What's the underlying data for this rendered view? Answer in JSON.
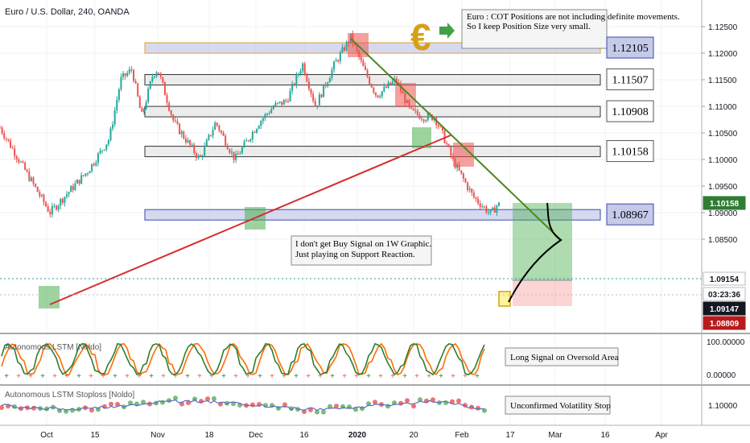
{
  "header": {
    "symbol_title": "Euro / U.S. Dollar, 240, OANDA"
  },
  "colors": {
    "up": "#26a69a",
    "down": "#ef5350",
    "trend_red": "#d32f2f",
    "trend_green": "#4a8a1f",
    "accent_blue": "#2962ff",
    "target_box": "#4caf50",
    "stop_box": "#ef5350",
    "gold": "#d4a017"
  },
  "annotations": {
    "euro_note": "Euro : COT Positions are not including definite movements.\nSo I keep Position Size very small.",
    "buy_note": "I don't get Buy Signal on 1W Graphic.\nJust playing on Support Reaction.",
    "long_signal_note": "Long Signal on Oversold Area",
    "vol_stop_note": "Unconfirmed Volatility Stop",
    "euro_symbol": "€"
  },
  "levels": [
    {
      "label": "1.12105",
      "style": "blue"
    },
    {
      "label": "1.11507",
      "style": "gray"
    },
    {
      "label": "1.10908",
      "style": "gray"
    },
    {
      "label": "1.10158",
      "style": "gray"
    },
    {
      "label": "1.08967",
      "style": "blue"
    }
  ],
  "indicators": {
    "lstm_title": "Autonomous LSTM [Noldo]",
    "stoploss_title": "Autonomous LSTM Stoploss [Noldo]"
  },
  "price_axis": {
    "ticks": [
      "1.12500",
      "1.12000",
      "1.11500",
      "1.11000",
      "1.10500",
      "1.10000",
      "1.09500",
      "1.09000",
      "1.08500"
    ],
    "badges": [
      {
        "label": "1.10158",
        "bg": "#2e7d32",
        "fg": "#ffffff"
      },
      {
        "label": "1.09154",
        "bg": "#ffffff",
        "fg": "#131722"
      },
      {
        "label": "03:23:36",
        "bg": "#ffffff",
        "fg": "#131722"
      },
      {
        "label": "1.09147",
        "bg": "#131722",
        "fg": "#ffffff"
      },
      {
        "label": "1.08809",
        "bg": "#b71c1c",
        "fg": "#ffffff"
      }
    ]
  },
  "indicator_axis": {
    "lstm_ticks": [
      "100.00000",
      "0.00000"
    ],
    "stop_ticks": [
      "1.10000"
    ]
  },
  "time_axis": {
    "ticks": [
      "Oct",
      "15",
      "Nov",
      "18",
      "Dec",
      "16",
      "2020",
      "20",
      "Feb",
      "17",
      "Mar",
      "16",
      "Apr"
    ]
  },
  "chart_data": {
    "type": "candlestick",
    "title": "Euro / U.S. Dollar, 240, OANDA",
    "timeframe": "240",
    "ylim": [
      1.0855,
      1.1265
    ],
    "x_categories": [
      "Oct",
      "15",
      "Nov",
      "18",
      "Dec",
      "16",
      "2020",
      "20",
      "Feb",
      "17",
      "Mar",
      "16",
      "Apr"
    ],
    "price_path": [
      [
        "Sep 25",
        1.106
      ],
      [
        "Oct 1",
        1.09
      ],
      [
        "Oct 7",
        1.098
      ],
      [
        "Oct 11",
        1.104
      ],
      [
        "Oct 18",
        1.115
      ],
      [
        "Oct 21",
        1.117
      ],
      [
        "Oct 25",
        1.108
      ],
      [
        "Oct 31",
        1.116
      ],
      [
        "Nov 1",
        1.117
      ],
      [
        "Nov 5",
        1.107
      ],
      [
        "Nov 14",
        1.1
      ],
      [
        "Nov 20",
        1.107
      ],
      [
        "Nov 29",
        1.1
      ],
      [
        "Dec 2",
        1.107
      ],
      [
        "Dec 6",
        1.11
      ],
      [
        "Dec 10",
        1.111
      ],
      [
        "Dec 14",
        1.118
      ],
      [
        "Dec 18",
        1.11
      ],
      [
        "Dec 24",
        1.118
      ],
      [
        "Dec 31",
        1.123
      ],
      [
        "Jan 5",
        1.117
      ],
      [
        "Jan 10",
        1.112
      ],
      [
        "Jan 16",
        1.115
      ],
      [
        "Jan 20",
        1.109
      ],
      [
        "Jan 24",
        1.108
      ],
      [
        "Jan 31",
        1.108
      ],
      [
        "Feb 3",
        1.104
      ],
      [
        "Feb 6",
        1.1
      ],
      [
        "Feb 10",
        1.093
      ],
      [
        "Feb 13",
        1.0897
      ],
      [
        "Feb 14",
        1.0915
      ]
    ],
    "horizontal_levels": [
      1.12105,
      1.11507,
      1.10908,
      1.10158,
      1.08967
    ],
    "current_price": 1.09154,
    "trade_setup": {
      "entry": 1.09154,
      "target": 1.10158,
      "stop": 1.08809
    },
    "trendlines": [
      {
        "name": "support",
        "from": [
          "Oct 1",
          1.09
        ],
        "to": [
          "Jan 30",
          1.1105
        ]
      },
      {
        "name": "resistance",
        "from": [
          "Dec 31",
          1.1235
        ],
        "to": [
          "Feb 26",
          1.096
        ]
      }
    ]
  }
}
